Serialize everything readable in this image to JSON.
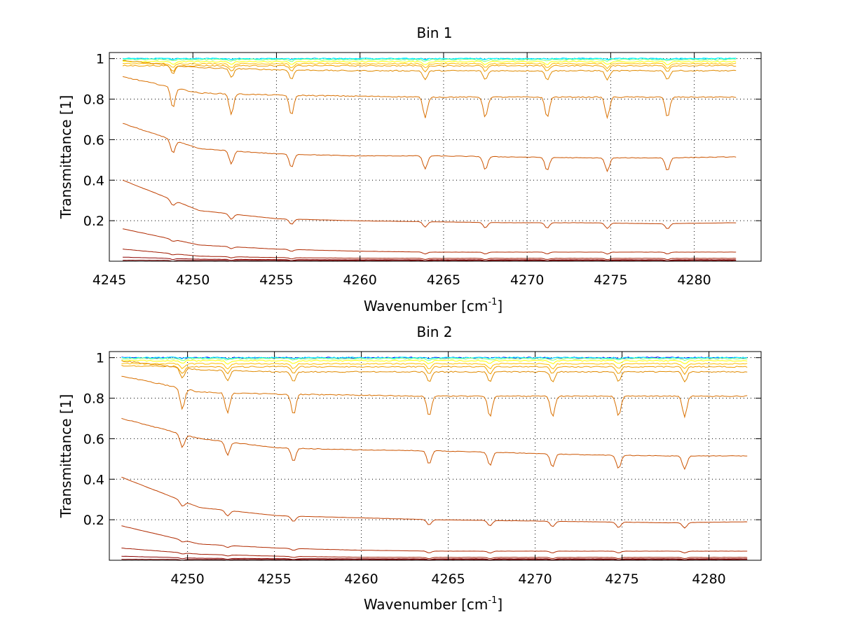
{
  "chart_data": [
    {
      "type": "line",
      "title": "Bin 1",
      "xlabel": {
        "text": "Wavenumber [cm",
        "sup": "-1",
        "close": "]"
      },
      "ylabel": "Transmittance [1]",
      "xlim": [
        4245,
        4284
      ],
      "ylim": [
        0,
        1.03
      ],
      "xticks": [
        4245,
        4250,
        4255,
        4260,
        4265,
        4270,
        4275,
        4280
      ],
      "yticks": [
        0.2,
        0.4,
        0.6,
        0.8,
        1
      ],
      "grid": true,
      "x_start": 4245.8,
      "x_end": 4282.5,
      "absorption_lines": [
        4248.8,
        4252.3,
        4255.9,
        4263.9,
        4267.5,
        4271.2,
        4274.8,
        4278.4
      ],
      "series": [
        {
          "color": "#00bfff",
          "values": [
            1.0,
            1.0,
            1.0,
            1.0,
            1.0,
            1.0,
            1.0,
            1.0,
            1.0
          ]
        },
        {
          "color": "#00ffff",
          "values": [
            1.0,
            1.0,
            1.0,
            1.0,
            1.0,
            1.0,
            1.0,
            1.0,
            1.0
          ]
        },
        {
          "color": "#80ff80",
          "values": [
            0.995,
            0.995,
            0.995,
            0.995,
            0.995,
            0.995,
            0.995,
            0.995,
            0.995
          ]
        },
        {
          "color": "#ffff00",
          "values": [
            0.985,
            0.985,
            0.985,
            0.985,
            0.985,
            0.985,
            0.985,
            0.985,
            0.985
          ]
        },
        {
          "color": "#ffbf00",
          "values": [
            0.975,
            0.975,
            0.975,
            0.975,
            0.975,
            0.975,
            0.975,
            0.975,
            0.975
          ]
        },
        {
          "color": "#f0a000",
          "values": [
            0.965,
            0.965,
            0.965,
            0.965,
            0.965,
            0.965,
            0.965,
            0.965,
            0.965
          ]
        },
        {
          "color": "#e08a00",
          "values": [
            0.99,
            0.955,
            0.945,
            0.94,
            0.94,
            0.94,
            0.94,
            0.94,
            0.94
          ]
        },
        {
          "color": "#d97000",
          "values": [
            0.91,
            0.83,
            0.82,
            0.815,
            0.81,
            0.81,
            0.81,
            0.81,
            0.81
          ]
        },
        {
          "color": "#cc5500",
          "values": [
            0.68,
            0.555,
            0.53,
            0.52,
            0.52,
            0.515,
            0.51,
            0.51,
            0.515
          ]
        },
        {
          "color": "#c04000",
          "values": [
            0.4,
            0.25,
            0.21,
            0.2,
            0.195,
            0.19,
            0.19,
            0.185,
            0.19
          ]
        },
        {
          "color": "#b02a00",
          "values": [
            0.16,
            0.08,
            0.06,
            0.05,
            0.045,
            0.045,
            0.045,
            0.045,
            0.045
          ]
        },
        {
          "color": "#a01800",
          "values": [
            0.06,
            0.025,
            0.018,
            0.015,
            0.014,
            0.014,
            0.014,
            0.014,
            0.014
          ]
        },
        {
          "color": "#8b0000",
          "values": [
            0.02,
            0.01,
            0.008,
            0.007,
            0.007,
            0.007,
            0.007,
            0.007,
            0.007
          ]
        },
        {
          "color": "#7a0000",
          "values": [
            0.005,
            0.004,
            0.004,
            0.004,
            0.004,
            0.004,
            0.004,
            0.004,
            0.004
          ]
        }
      ]
    },
    {
      "type": "line",
      "title": "Bin 2",
      "xlabel": {
        "text": "Wavenumber [cm",
        "sup": "-1",
        "close": "]"
      },
      "ylabel": "Transmittance [1]",
      "xlim": [
        4245.5,
        4283
      ],
      "ylim": [
        0,
        1.03
      ],
      "xticks": [
        4250,
        4255,
        4260,
        4265,
        4270,
        4275,
        4280
      ],
      "yticks": [
        0.2,
        0.4,
        0.6,
        0.8,
        1
      ],
      "grid": true,
      "x_start": 4246.2,
      "x_end": 4282.2,
      "absorption_lines": [
        4249.7,
        4252.3,
        4256.1,
        4263.9,
        4267.4,
        4271.0,
        4274.8,
        4278.6
      ],
      "series": [
        {
          "color": "#0000ff",
          "values": [
            1.0,
            1.0,
            1.0,
            1.0,
            1.0,
            1.0,
            1.0,
            1.0,
            1.0
          ]
        },
        {
          "color": "#00ffff",
          "values": [
            1.0,
            1.0,
            1.0,
            1.0,
            1.0,
            1.0,
            1.0,
            1.0,
            1.0
          ]
        },
        {
          "color": "#80ff80",
          "values": [
            0.995,
            0.995,
            0.995,
            0.995,
            0.995,
            0.995,
            0.995,
            0.995,
            0.995
          ]
        },
        {
          "color": "#ffff00",
          "values": [
            0.985,
            0.985,
            0.985,
            0.985,
            0.985,
            0.985,
            0.985,
            0.985,
            0.985
          ]
        },
        {
          "color": "#ffbf00",
          "values": [
            0.97,
            0.97,
            0.97,
            0.97,
            0.97,
            0.97,
            0.97,
            0.97,
            0.97
          ]
        },
        {
          "color": "#f0a000",
          "values": [
            0.96,
            0.955,
            0.955,
            0.955,
            0.955,
            0.955,
            0.955,
            0.955,
            0.955
          ]
        },
        {
          "color": "#e08a00",
          "values": [
            0.985,
            0.94,
            0.93,
            0.93,
            0.93,
            0.93,
            0.93,
            0.93,
            0.93
          ]
        },
        {
          "color": "#d97000",
          "values": [
            0.91,
            0.83,
            0.82,
            0.815,
            0.81,
            0.81,
            0.81,
            0.81,
            0.81
          ]
        },
        {
          "color": "#cc5500",
          "values": [
            0.7,
            0.6,
            0.555,
            0.545,
            0.54,
            0.53,
            0.52,
            0.515,
            0.515
          ]
        },
        {
          "color": "#c04000",
          "values": [
            0.41,
            0.26,
            0.22,
            0.21,
            0.2,
            0.195,
            0.19,
            0.185,
            0.19
          ]
        },
        {
          "color": "#b02a00",
          "values": [
            0.17,
            0.08,
            0.06,
            0.05,
            0.045,
            0.045,
            0.045,
            0.045,
            0.045
          ]
        },
        {
          "color": "#a01800",
          "values": [
            0.06,
            0.03,
            0.02,
            0.015,
            0.014,
            0.014,
            0.014,
            0.014,
            0.014
          ]
        },
        {
          "color": "#8b0000",
          "values": [
            0.02,
            0.01,
            0.008,
            0.007,
            0.007,
            0.007,
            0.007,
            0.007,
            0.007
          ]
        },
        {
          "color": "#7a0000",
          "values": [
            0.005,
            0.004,
            0.004,
            0.004,
            0.004,
            0.004,
            0.004,
            0.004,
            0.004
          ]
        }
      ]
    }
  ]
}
